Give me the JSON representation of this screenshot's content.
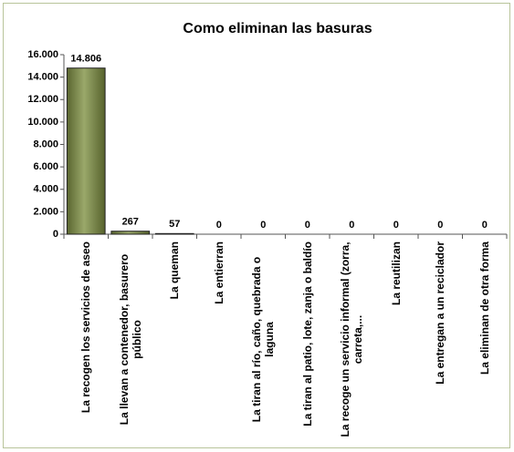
{
  "chart_data": {
    "type": "bar",
    "title": "Como eliminan las basuras",
    "categories": [
      "La recogen los servicios de aseo",
      "La llevan a contenedor, basurero público",
      "La queman",
      "La entierran",
      "La tiran al río, caño, quebrada o laguna",
      "La tiran al patio, lote, zanja o baldío",
      "La recoge un servicio informal (zorra, carreta,...",
      "La reutilizan",
      "La entregan a un reciclador",
      "La eliminan de otra forma"
    ],
    "values": [
      14806,
      267,
      57,
      0,
      0,
      0,
      0,
      0,
      0,
      0
    ],
    "value_labels": [
      "14.806",
      "267",
      "57",
      "0",
      "0",
      "0",
      "0",
      "0",
      "0",
      "0"
    ],
    "color": "#6f7d3c",
    "ylim": [
      0,
      16000
    ],
    "yticks": [
      0,
      {
        "value": 2000,
        "label": "2.000"
      },
      {
        "value": 4000,
        "label": "4.000"
      },
      {
        "value": 6000,
        "label": "6.000"
      },
      {
        "value": 8000,
        "label": "8.000"
      },
      {
        "value": 10000,
        "label": "10.000"
      },
      {
        "value": 12000,
        "label": "12.000"
      },
      {
        "value": 14000,
        "label": "14.000"
      },
      {
        "value": 16000,
        "label": "16.000"
      }
    ],
    "grid": false
  }
}
